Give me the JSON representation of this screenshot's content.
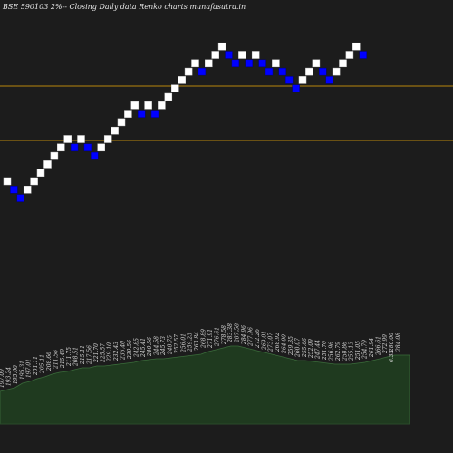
{
  "chart_data": {
    "type": "renko",
    "title": "BSE 590103 2%-- Closing Daily data  Renko  charts munafasutra.in",
    "colors": {
      "background": "#1c1c1c",
      "up_brick": "#ffffff",
      "down_brick": "#0000ff",
      "level_line": "#b8860b",
      "volume_area": "#1f3a1f",
      "volume_edge": "#3a6b3a"
    },
    "levels": [
      {
        "price": 275.0
      },
      {
        "price": 258.0
      }
    ],
    "bricks": [
      {
        "dir": "up",
        "level": 6
      },
      {
        "dir": "down",
        "level": 5
      },
      {
        "dir": "down",
        "level": 4
      },
      {
        "dir": "up",
        "level": 5
      },
      {
        "dir": "up",
        "level": 6
      },
      {
        "dir": "up",
        "level": 7
      },
      {
        "dir": "up",
        "level": 8
      },
      {
        "dir": "up",
        "level": 9
      },
      {
        "dir": "up",
        "level": 10
      },
      {
        "dir": "up",
        "level": 11
      },
      {
        "dir": "down",
        "level": 10
      },
      {
        "dir": "up",
        "level": 11
      },
      {
        "dir": "down",
        "level": 10
      },
      {
        "dir": "down",
        "level": 9
      },
      {
        "dir": "up",
        "level": 10
      },
      {
        "dir": "up",
        "level": 11
      },
      {
        "dir": "up",
        "level": 12
      },
      {
        "dir": "up",
        "level": 13
      },
      {
        "dir": "up",
        "level": 14
      },
      {
        "dir": "up",
        "level": 15
      },
      {
        "dir": "down",
        "level": 14
      },
      {
        "dir": "up",
        "level": 15
      },
      {
        "dir": "down",
        "level": 14
      },
      {
        "dir": "up",
        "level": 15
      },
      {
        "dir": "up",
        "level": 16
      },
      {
        "dir": "up",
        "level": 17
      },
      {
        "dir": "up",
        "level": 18
      },
      {
        "dir": "up",
        "level": 19
      },
      {
        "dir": "up",
        "level": 20
      },
      {
        "dir": "down",
        "level": 19
      },
      {
        "dir": "up",
        "level": 20
      },
      {
        "dir": "up",
        "level": 21
      },
      {
        "dir": "up",
        "level": 22
      },
      {
        "dir": "down",
        "level": 21
      },
      {
        "dir": "down",
        "level": 20
      },
      {
        "dir": "up",
        "level": 21
      },
      {
        "dir": "down",
        "level": 20
      },
      {
        "dir": "up",
        "level": 21
      },
      {
        "dir": "down",
        "level": 20
      },
      {
        "dir": "down",
        "level": 19
      },
      {
        "dir": "up",
        "level": 20
      },
      {
        "dir": "down",
        "level": 19
      },
      {
        "dir": "down",
        "level": 18
      },
      {
        "dir": "down",
        "level": 17
      },
      {
        "dir": "up",
        "level": 18
      },
      {
        "dir": "up",
        "level": 19
      },
      {
        "dir": "up",
        "level": 20
      },
      {
        "dir": "down",
        "level": 19
      },
      {
        "dir": "down",
        "level": 18
      },
      {
        "dir": "up",
        "level": 19
      },
      {
        "dir": "up",
        "level": 20
      },
      {
        "dir": "up",
        "level": 21
      },
      {
        "dir": "up",
        "level": 22
      },
      {
        "dir": "down",
        "level": 21
      }
    ],
    "volume_profile": [
      36,
      38,
      40,
      45,
      47,
      50,
      52,
      55,
      57,
      58,
      60,
      62,
      62,
      64,
      64,
      65,
      66,
      67,
      68,
      70,
      71,
      72,
      72,
      73,
      74,
      75,
      76,
      77,
      80,
      82,
      84,
      86,
      86,
      84,
      82,
      80,
      78,
      76,
      74,
      72,
      70,
      70,
      69,
      68,
      67,
      66,
      66,
      66,
      67,
      68,
      70,
      72,
      74,
      76,
      76,
      76
    ],
    "price_labels": [
      "197.09",
      "193.24",
      "195.60",
      "195.31",
      "197.01",
      "201.11",
      "205.11",
      "208.66",
      "211.56",
      "215.49",
      "211.75",
      "208.51",
      "215.11",
      "217.56",
      "221.70",
      "225.57",
      "229.10",
      "232.43",
      "236.40",
      "239.56",
      "242.85",
      "245.41",
      "240.56",
      "244.58",
      "245.73",
      "248.75",
      "252.57",
      "256.01",
      "259.23",
      "263.84",
      "268.89",
      "271.91",
      "276.61",
      "278.58",
      "283.38",
      "287.58",
      "284.96",
      "277.96",
      "272.26",
      "269.01",
      "273.07",
      "268.92",
      "264.00",
      "259.35",
      "260.07",
      "255.66",
      "252.09",
      "247.44",
      "251.70",
      "256.96",
      "262.79",
      "258.86",
      "255.13",
      "251.05",
      "254.79",
      "261.94",
      "266.61",
      "272.99",
      "280.00",
      "284.08"
    ],
    "annotation": "6.35"
  }
}
